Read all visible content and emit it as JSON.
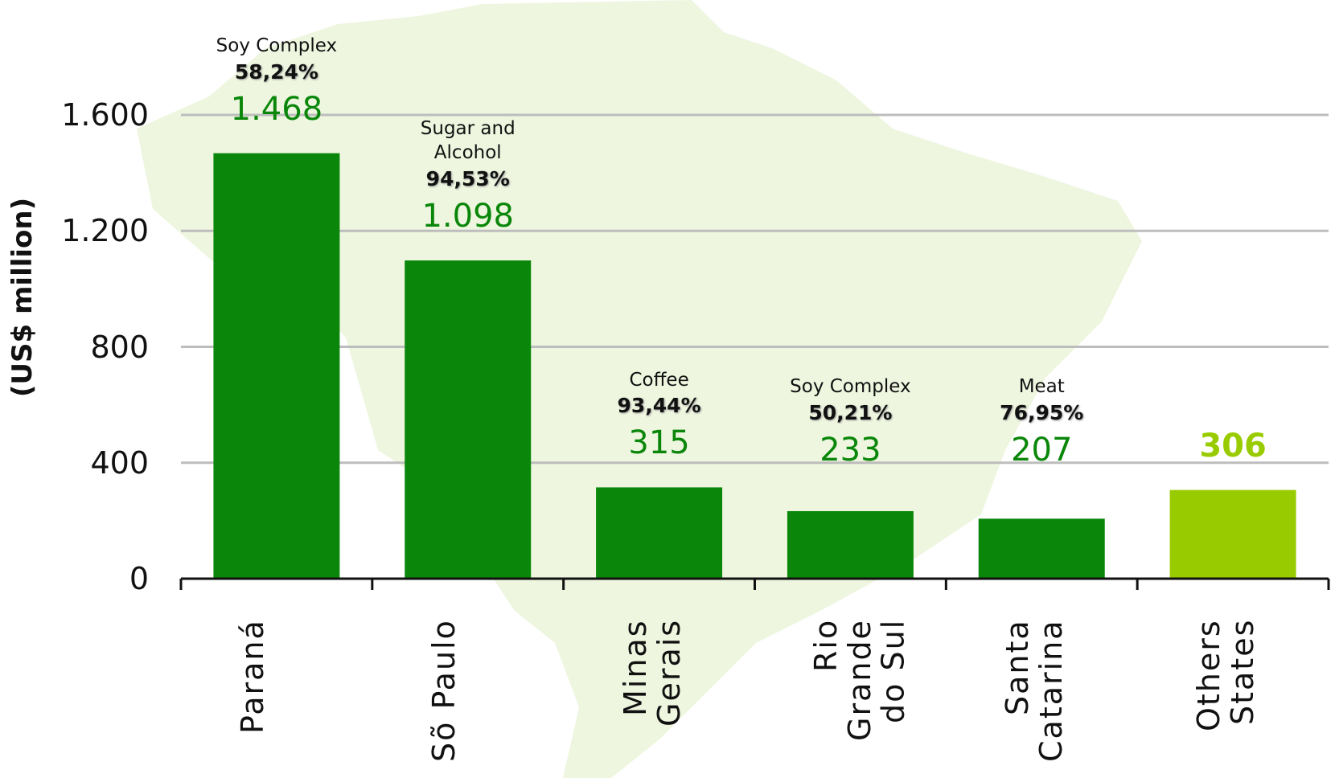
{
  "chart_data": {
    "type": "bar",
    "y_label": "(US$ million)",
    "categories": [
      "Paraná",
      "Sõ Paulo",
      "Minas Gerais",
      "Rio Grande do Sul",
      "Santa Catarina",
      "Others States"
    ],
    "values": [
      1468,
      1098,
      315,
      233,
      207,
      306
    ],
    "value_labels": [
      "1.468",
      "1.098",
      "315",
      "233",
      "207",
      "306"
    ],
    "colors": [
      "#0a870a",
      "#0a870a",
      "#0a870a",
      "#0a870a",
      "#0a870a",
      "#99cc00"
    ],
    "annotations": [
      {
        "product": "Soy Complex",
        "share": "58,24%"
      },
      {
        "product": "Sugar and Alcohol",
        "share": "94,53%"
      },
      {
        "product": "Coffee",
        "share": "93,44%"
      },
      {
        "product": "Soy Complex",
        "share": "50,21%"
      },
      {
        "product": "Meat",
        "share": "76,95%"
      }
    ],
    "ylim": [
      0,
      1600
    ],
    "yticks": [
      0,
      400,
      800,
      {
        "value": 1200,
        "label": "1.200"
      },
      {
        "value": 1600,
        "label": "1.600"
      }
    ],
    "grid": true
  }
}
